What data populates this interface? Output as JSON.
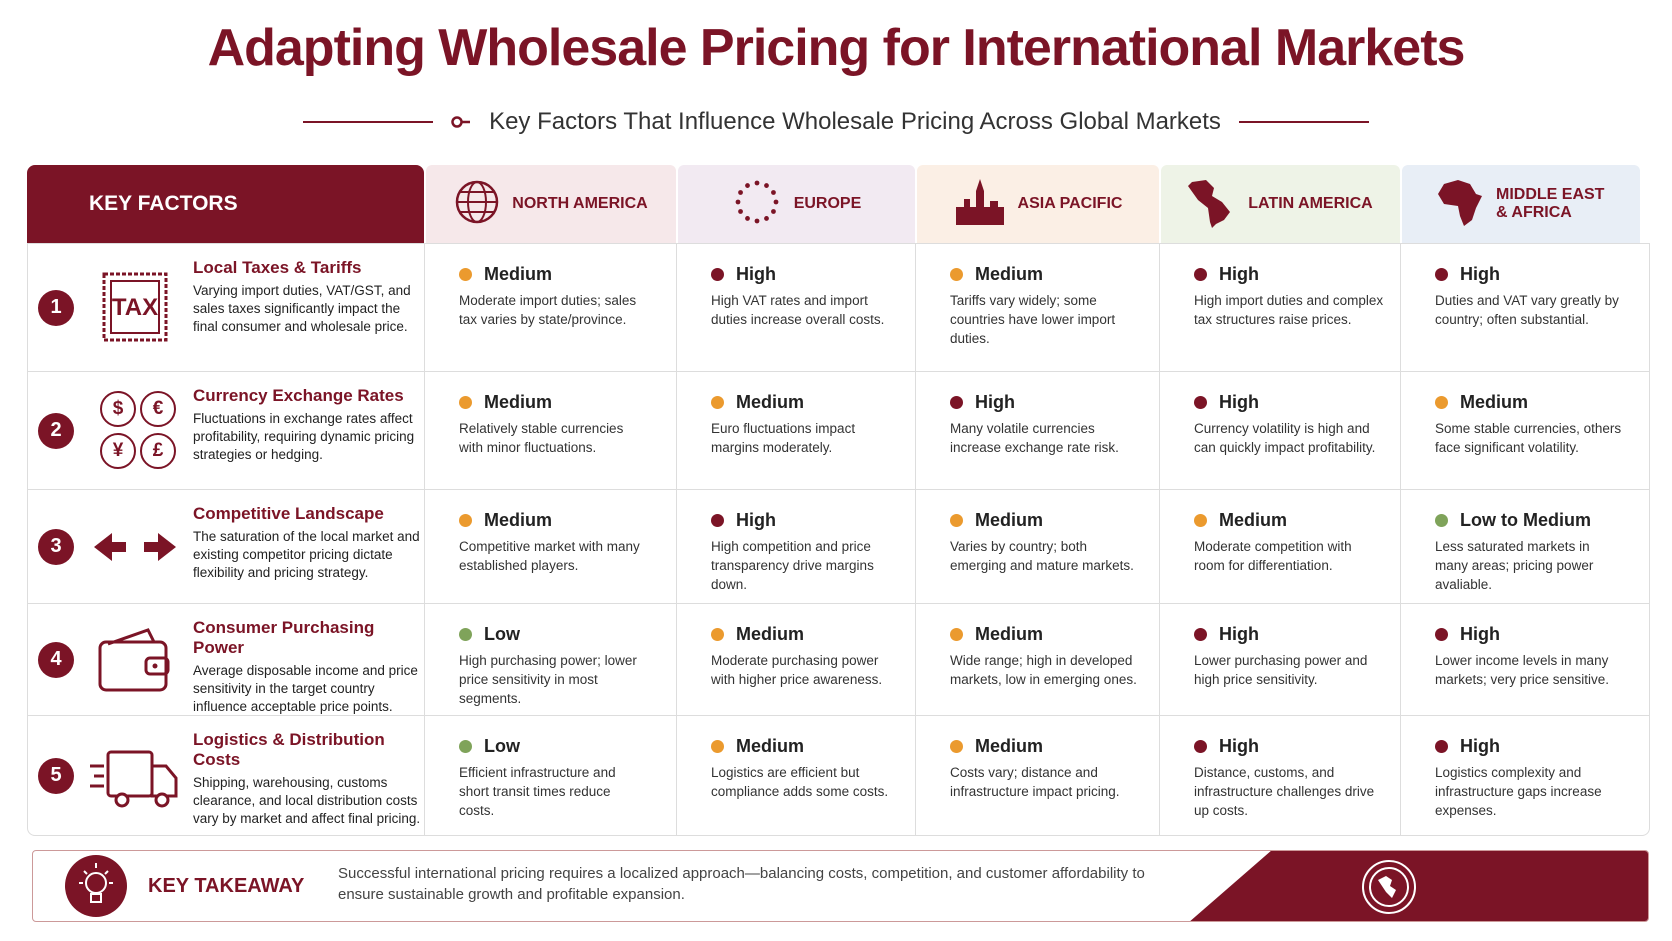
{
  "header": {
    "title": "Adapting Wholesale Pricing for International Markets",
    "subtitle": "Key Factors That Influence Wholesale Pricing Across Global Markets"
  },
  "level_colors": {
    "High": "#7b1426",
    "Medium": "#eb9a2e",
    "Low": "#7fa35a",
    "Low to Medium": "#7fa35a"
  },
  "table": {
    "corner": "KEY FACTORS",
    "regions": [
      "NORTH AMERICA",
      "EUROPE",
      "ASIA PACIFIC",
      "LATIN AMERICA",
      "MIDDLE EAST & AFRICA"
    ],
    "rows": [
      {
        "number": "1",
        "factor": "Local Taxes & Tariffs",
        "description": "Varying import duties, VAT/GST, and sales taxes significantly impact the final consumer and wholesale price.",
        "icon_text": [
          "TAX"
        ],
        "cells": [
          {
            "level": "Medium",
            "text": "Moderate import duties; sales tax varies by state/province."
          },
          {
            "level": "High",
            "text": "High VAT rates and import duties increase overall costs."
          },
          {
            "level": "Medium",
            "text": "Tariffs vary widely; some countries have lower import duties."
          },
          {
            "level": "High",
            "text": "High import duties and complex tax structures raise prices."
          },
          {
            "level": "High",
            "text": "Duties and VAT vary greatly by country; often substantial."
          }
        ]
      },
      {
        "number": "2",
        "factor": "Currency Exchange Rates",
        "description": "Fluctuations in exchange rates affect profitability, requiring dynamic pricing strategies or hedging.",
        "icon_text": [
          "$",
          "€",
          "¥",
          "£"
        ],
        "cells": [
          {
            "level": "Medium",
            "text": "Relatively stable currencies with minor fluctuations."
          },
          {
            "level": "Medium",
            "text": "Euro fluctuations impact margins moderately."
          },
          {
            "level": "High",
            "text": "Many volatile currencies increase exchange rate risk."
          },
          {
            "level": "High",
            "text": "Currency volatility is high and can quickly impact profitability."
          },
          {
            "level": "Medium",
            "text": "Some stable currencies, others face significant volatility."
          }
        ]
      },
      {
        "number": "3",
        "factor": "Competitive Landscape",
        "description": "The saturation of the local market and existing competitor pricing dictate flexibility and pricing strategy.",
        "cells": [
          {
            "level": "Medium",
            "text": "Competitive market with many established players."
          },
          {
            "level": "High",
            "text": "High competition and price transparency drive margins down."
          },
          {
            "level": "Medium",
            "text": "Varies by country; both emerging and mature markets."
          },
          {
            "level": "Medium",
            "text": "Moderate competition with room for differentiation."
          },
          {
            "level": "Low to Medium",
            "text": "Less saturated markets in many areas; pricing power avaliable."
          }
        ]
      },
      {
        "number": "4",
        "factor": "Consumer Purchasing Power",
        "description": "Average disposable income and price sensitivity in the target country influence acceptable price points.",
        "cells": [
          {
            "level": "Low",
            "text": "High purchasing power; lower price sensitivity in most segments."
          },
          {
            "level": "Medium",
            "text": "Moderate purchasing power with higher price awareness."
          },
          {
            "level": "Medium",
            "text": "Wide range; high in developed markets, low in emerging ones."
          },
          {
            "level": "High",
            "text": "Lower purchasing power and high price sensitivity."
          },
          {
            "level": "High",
            "text": "Lower income levels in many markets; very price sensitive."
          }
        ]
      },
      {
        "number": "5",
        "factor": "Logistics & Distribution Costs",
        "description": "Shipping, warehousing, customs clearance, and local distribution costs vary by market and affect final pricing.",
        "cells": [
          {
            "level": "Low",
            "text": "Efficient infrastructure and short transit times reduce costs."
          },
          {
            "level": "Medium",
            "text": "Logistics are efficient but compliance adds some costs."
          },
          {
            "level": "Medium",
            "text": "Costs vary; distance and infrastructure impact pricing."
          },
          {
            "level": "High",
            "text": "Distance, customs, and infrastructure challenges drive up costs."
          },
          {
            "level": "High",
            "text": "Logistics complexity and infrastructure gaps increase expenses."
          }
        ]
      }
    ]
  },
  "takeaway": {
    "label": "KEY TAKEAWAY",
    "text": "Successful international pricing requires a localized approach—balancing costs, competition, and customer affordability to ensure sustainable growth and profitable expansion."
  }
}
